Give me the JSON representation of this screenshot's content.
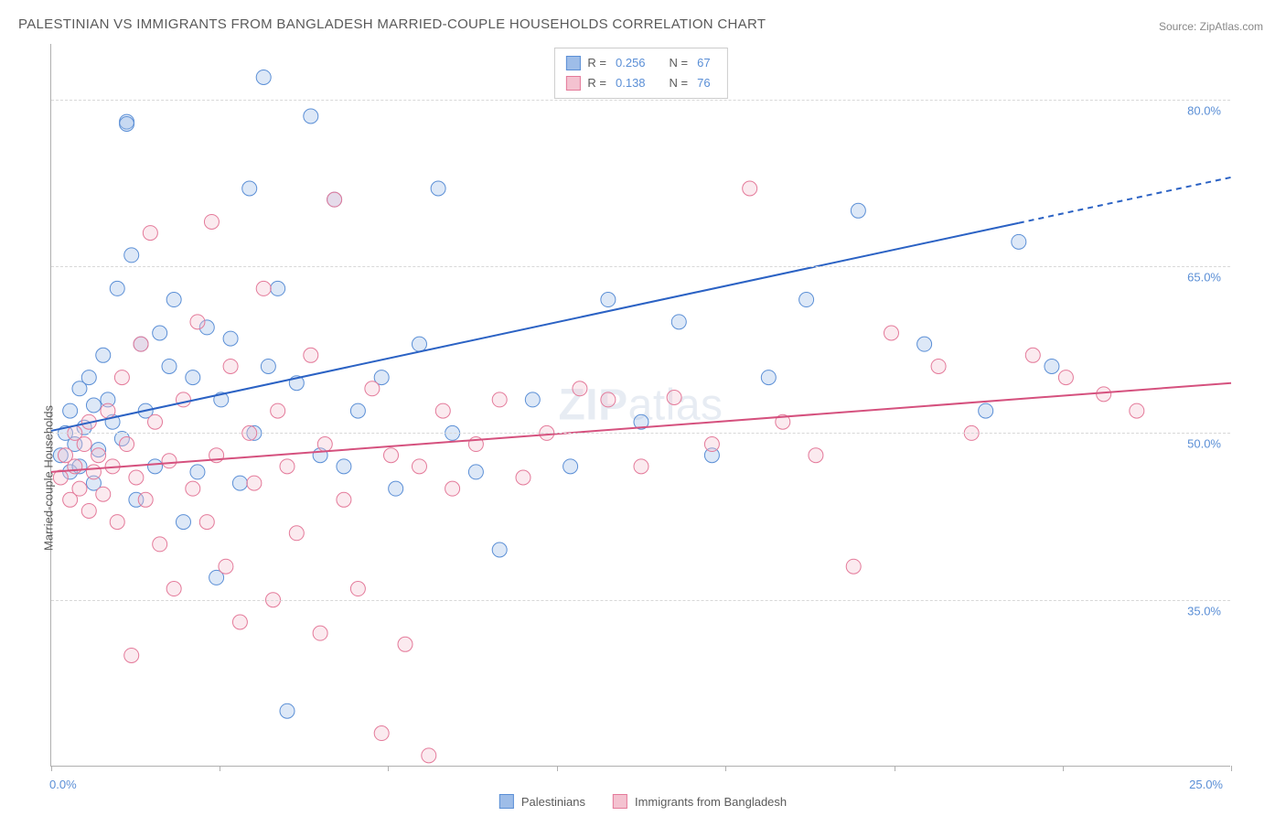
{
  "title": "PALESTINIAN VS IMMIGRANTS FROM BANGLADESH MARRIED-COUPLE HOUSEHOLDS CORRELATION CHART",
  "source_label": "Source: ",
  "source_value": "ZipAtlas.com",
  "ylabel": "Married-couple Households",
  "chart": {
    "type": "scatter",
    "xlim": [
      0,
      25
    ],
    "ylim": [
      20,
      85
    ],
    "xtick_labels": {
      "min": "0.0%",
      "max": "25.0%"
    },
    "ytick_positions": [
      35,
      50,
      65,
      80
    ],
    "ytick_labels": [
      "35.0%",
      "50.0%",
      "65.0%",
      "80.0%"
    ],
    "x_minor_ticks": [
      0,
      3.57,
      7.14,
      10.71,
      14.29,
      17.86,
      21.43,
      25
    ],
    "background_color": "#ffffff",
    "grid_color": "#d8d8d8",
    "axis_color": "#b0b0b0",
    "marker_radius": 8,
    "marker_stroke_width": 1,
    "marker_fill_opacity": 0.35,
    "line_width": 2,
    "series": [
      {
        "name": "Palestinians",
        "color_fill": "#9ebde8",
        "color_stroke": "#5b8fd6",
        "line_color": "#2b62c4",
        "R": "0.256",
        "N": "67",
        "trend": {
          "x1": 0,
          "y1": 50.2,
          "x2": 25,
          "y2": 73.0,
          "solid_until_x": 20.5
        },
        "points": [
          [
            0.2,
            48
          ],
          [
            0.3,
            50
          ],
          [
            0.4,
            46.5
          ],
          [
            0.4,
            52
          ],
          [
            0.5,
            49
          ],
          [
            0.6,
            47
          ],
          [
            0.6,
            54
          ],
          [
            0.7,
            50.5
          ],
          [
            0.8,
            55
          ],
          [
            0.9,
            45.5
          ],
          [
            0.9,
            52.5
          ],
          [
            1.0,
            48.5
          ],
          [
            1.1,
            57
          ],
          [
            1.2,
            53
          ],
          [
            1.3,
            51
          ],
          [
            1.4,
            63
          ],
          [
            1.5,
            49.5
          ],
          [
            1.6,
            78
          ],
          [
            1.6,
            77.8
          ],
          [
            1.7,
            66
          ],
          [
            1.8,
            44
          ],
          [
            1.9,
            58
          ],
          [
            2.0,
            52
          ],
          [
            2.2,
            47
          ],
          [
            2.3,
            59
          ],
          [
            2.5,
            56
          ],
          [
            2.6,
            62
          ],
          [
            2.8,
            42
          ],
          [
            3.0,
            55
          ],
          [
            3.1,
            46.5
          ],
          [
            3.3,
            59.5
          ],
          [
            3.5,
            37
          ],
          [
            3.6,
            53
          ],
          [
            3.8,
            58.5
          ],
          [
            4.0,
            45.5
          ],
          [
            4.2,
            72
          ],
          [
            4.3,
            50
          ],
          [
            4.5,
            82
          ],
          [
            4.6,
            56
          ],
          [
            4.8,
            63
          ],
          [
            5.0,
            25
          ],
          [
            5.2,
            54.5
          ],
          [
            5.5,
            78.5
          ],
          [
            5.7,
            48
          ],
          [
            6.0,
            71
          ],
          [
            6.2,
            47
          ],
          [
            6.5,
            52
          ],
          [
            7.0,
            55
          ],
          [
            7.3,
            45
          ],
          [
            7.8,
            58
          ],
          [
            8.2,
            72
          ],
          [
            8.5,
            50
          ],
          [
            9.0,
            46.5
          ],
          [
            9.5,
            39.5
          ],
          [
            10.2,
            53
          ],
          [
            11.0,
            47
          ],
          [
            11.8,
            62
          ],
          [
            12.5,
            51
          ],
          [
            13.3,
            60
          ],
          [
            14.0,
            48
          ],
          [
            15.2,
            55
          ],
          [
            16.0,
            62
          ],
          [
            17.1,
            70
          ],
          [
            18.5,
            58
          ],
          [
            19.8,
            52
          ],
          [
            20.5,
            67.2
          ],
          [
            21.2,
            56
          ]
        ]
      },
      {
        "name": "Immigrants from Bangladesh",
        "color_fill": "#f4c2d0",
        "color_stroke": "#e47a9a",
        "line_color": "#d5517e",
        "R": "0.138",
        "N": "76",
        "trend": {
          "x1": 0,
          "y1": 46.5,
          "x2": 25,
          "y2": 54.5,
          "solid_until_x": 25
        },
        "points": [
          [
            0.2,
            46
          ],
          [
            0.3,
            48
          ],
          [
            0.4,
            44
          ],
          [
            0.5,
            47
          ],
          [
            0.5,
            50
          ],
          [
            0.6,
            45
          ],
          [
            0.7,
            49
          ],
          [
            0.8,
            43
          ],
          [
            0.8,
            51
          ],
          [
            0.9,
            46.5
          ],
          [
            1.0,
            48
          ],
          [
            1.1,
            44.5
          ],
          [
            1.2,
            52
          ],
          [
            1.3,
            47
          ],
          [
            1.4,
            42
          ],
          [
            1.5,
            55
          ],
          [
            1.6,
            49
          ],
          [
            1.7,
            30
          ],
          [
            1.8,
            46
          ],
          [
            1.9,
            58
          ],
          [
            2.0,
            44
          ],
          [
            2.1,
            68
          ],
          [
            2.2,
            51
          ],
          [
            2.3,
            40
          ],
          [
            2.5,
            47.5
          ],
          [
            2.6,
            36
          ],
          [
            2.8,
            53
          ],
          [
            3.0,
            45
          ],
          [
            3.1,
            60
          ],
          [
            3.3,
            42
          ],
          [
            3.4,
            69
          ],
          [
            3.5,
            48
          ],
          [
            3.7,
            38
          ],
          [
            3.8,
            56
          ],
          [
            4.0,
            33
          ],
          [
            4.2,
            50
          ],
          [
            4.3,
            45.5
          ],
          [
            4.5,
            63
          ],
          [
            4.7,
            35
          ],
          [
            4.8,
            52
          ],
          [
            5.0,
            47
          ],
          [
            5.2,
            41
          ],
          [
            5.5,
            57
          ],
          [
            5.7,
            32
          ],
          [
            5.8,
            49
          ],
          [
            6.0,
            71
          ],
          [
            6.2,
            44
          ],
          [
            6.5,
            36
          ],
          [
            6.8,
            54
          ],
          [
            7.0,
            23
          ],
          [
            7.2,
            48
          ],
          [
            7.5,
            31
          ],
          [
            7.8,
            47
          ],
          [
            8.0,
            21
          ],
          [
            8.3,
            52
          ],
          [
            8.5,
            45
          ],
          [
            9.0,
            49
          ],
          [
            9.5,
            53
          ],
          [
            10.0,
            46
          ],
          [
            10.5,
            50
          ],
          [
            11.2,
            54
          ],
          [
            11.8,
            53
          ],
          [
            12.5,
            47
          ],
          [
            13.2,
            53.2
          ],
          [
            14.0,
            49
          ],
          [
            14.8,
            72
          ],
          [
            15.5,
            51
          ],
          [
            16.2,
            48
          ],
          [
            17.0,
            38
          ],
          [
            17.8,
            59
          ],
          [
            18.8,
            56
          ],
          [
            19.5,
            50
          ],
          [
            20.8,
            57
          ],
          [
            21.5,
            55
          ],
          [
            22.3,
            53.5
          ],
          [
            23.0,
            52
          ]
        ]
      }
    ]
  },
  "watermark": {
    "prefix": "ZIP",
    "suffix": "atlas"
  },
  "legend": {
    "top": {
      "r_label": "R =",
      "n_label": "N ="
    },
    "bottom_series1": "Palestinians",
    "bottom_series2": "Immigrants from Bangladesh"
  }
}
